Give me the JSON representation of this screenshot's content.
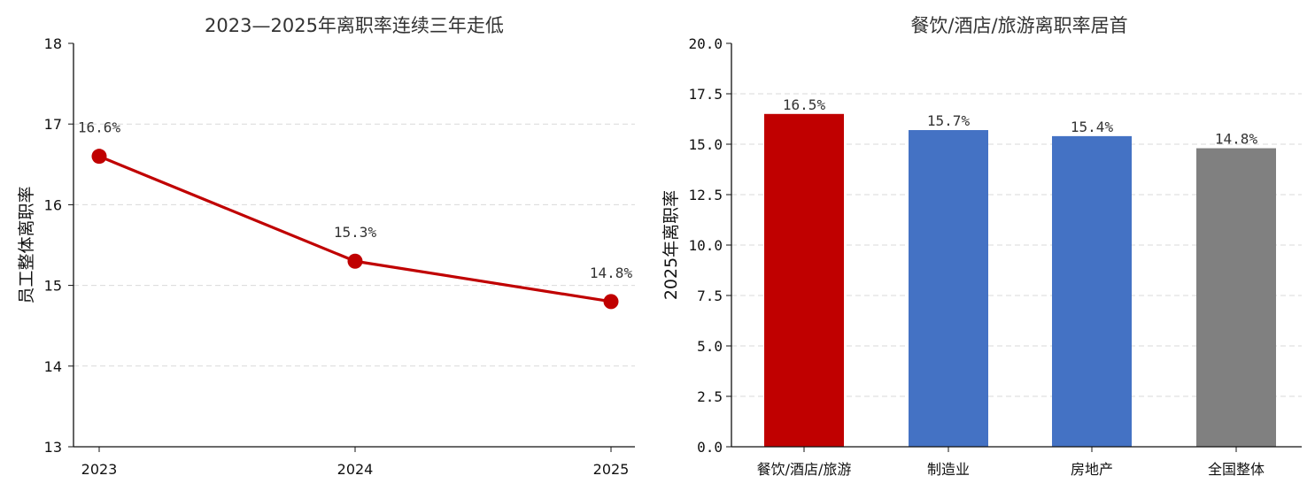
{
  "chart_data": [
    {
      "type": "line",
      "title": "2023—2025年离职率连续三年走低",
      "ylabel": "员工整体离职率",
      "xlabel": "",
      "x": [
        "2023",
        "2024",
        "2025"
      ],
      "values": [
        16.6,
        15.3,
        14.8
      ],
      "data_labels": [
        "16.6%",
        "15.3%",
        "14.8%"
      ],
      "ylim": [
        13,
        18
      ],
      "yticks": [
        "13",
        "14",
        "15",
        "16",
        "17",
        "18"
      ],
      "grid": "horizontal dashed",
      "color": "#c00000"
    },
    {
      "type": "bar",
      "title": "餐饮/酒店/旅游离职率居首",
      "ylabel": "2025年离职率",
      "xlabel": "",
      "categories": [
        "餐饮/酒店/旅游",
        "制造业",
        "房地产",
        "全国整体"
      ],
      "values": [
        16.5,
        15.7,
        15.4,
        14.8
      ],
      "data_labels": [
        "16.5%",
        "15.7%",
        "15.4%",
        "14.8%"
      ],
      "colors": [
        "#c00000",
        "#4472c4",
        "#4472c4",
        "#808080"
      ],
      "ylim": [
        0,
        20
      ],
      "yticks": [
        "0.0",
        "2.5",
        "5.0",
        "7.5",
        "10.0",
        "12.5",
        "15.0",
        "17.5",
        "20.0"
      ],
      "grid": "horizontal dashed"
    }
  ]
}
